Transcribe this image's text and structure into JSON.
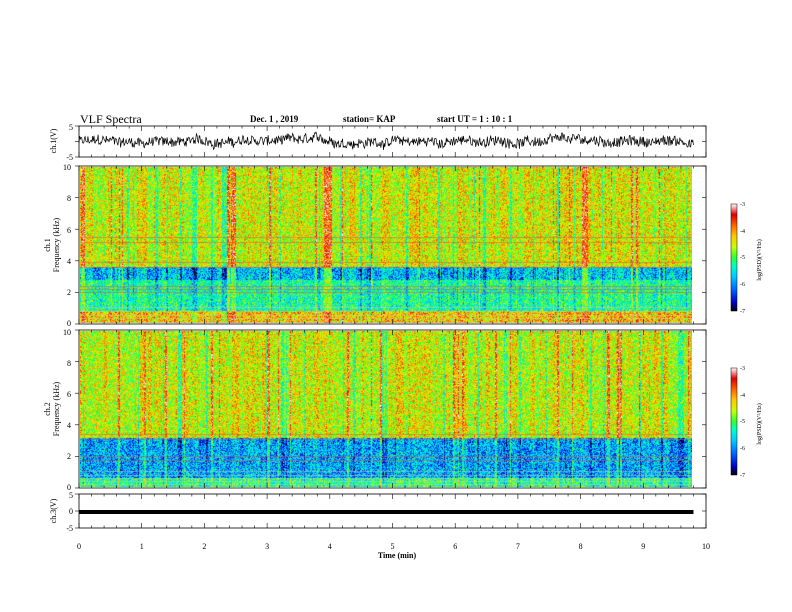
{
  "header": {
    "title": "VLF Spectra",
    "date": "Dec. 1  , 2019",
    "station": "station= KAP",
    "start": "start  UT =   1 : 10 : 1"
  },
  "colors": {
    "colormap": [
      "#000000",
      "#0000c8",
      "#0064ff",
      "#00c8ff",
      "#00ffc8",
      "#32ff32",
      "#c8ff00",
      "#ffc800",
      "#ff6400",
      "#dc0000",
      "#ffffff"
    ],
    "waveform": "#000000",
    "background": "#ffffff"
  },
  "chart_data": [
    {
      "type": "line",
      "name": "ch1-waveform",
      "ylabel": "ch.1(V)",
      "ylim": [
        -5,
        5
      ],
      "yticks": [
        "5",
        "-5"
      ],
      "xlim": [
        0,
        10
      ],
      "data_extent_min": 9.8,
      "y_approx_range": [
        -3.5,
        3.5
      ],
      "y_mean": 0
    },
    {
      "type": "heatmap",
      "name": "ch1-spectrogram",
      "ylabel": "ch.1\nFrequency (kHz)",
      "ylim": [
        0,
        10
      ],
      "yticks": [
        "0",
        "2",
        "4",
        "6",
        "8",
        "10"
      ],
      "xlim": [
        0,
        10
      ],
      "data_extent_min": 9.8,
      "colorbar": {
        "label": "log(PSD)(V²/Hz)",
        "range": [
          -7,
          -3
        ],
        "ticks": [
          "-3",
          "-4",
          "-5",
          "-6",
          "-7"
        ]
      },
      "horizontal_lines_khz": [
        0.05,
        0.3,
        0.5,
        0.8,
        1.0,
        2.0,
        2.2,
        2.4,
        3.6,
        3.9,
        5.2,
        5.5
      ],
      "approx_log_psd_by_band": [
        {
          "from_khz": 0,
          "to_khz": 0.8,
          "value": -4.2
        },
        {
          "from_khz": 0.8,
          "to_khz": 2.8,
          "value": -5.3
        },
        {
          "from_khz": 2.8,
          "to_khz": 3.6,
          "value": -5.8
        },
        {
          "from_khz": 3.6,
          "to_khz": 10,
          "value": -4.5
        }
      ]
    },
    {
      "type": "heatmap",
      "name": "ch2-spectrogram",
      "ylabel": "ch.2\nFrequency (kHz)",
      "ylim": [
        0,
        10
      ],
      "yticks": [
        "0",
        "2",
        "4",
        "6",
        "8",
        "10"
      ],
      "xlim": [
        0,
        10
      ],
      "data_extent_min": 9.8,
      "colorbar": {
        "label": "log(PSD)(V²/Hz)",
        "range": [
          -7,
          -3
        ],
        "ticks": [
          "-3",
          "-4",
          "-5",
          "-6",
          "-7"
        ]
      },
      "horizontal_lines_khz": [
        0.2,
        0.4,
        0.6,
        0.8,
        1.0,
        1.7,
        2.0,
        3.1,
        3.4
      ],
      "approx_log_psd_by_band": [
        {
          "from_khz": 0,
          "to_khz": 0.6,
          "value": -5.2
        },
        {
          "from_khz": 0.6,
          "to_khz": 3.2,
          "value": -5.9
        },
        {
          "from_khz": 3.2,
          "to_khz": 10,
          "value": -4.5
        }
      ]
    },
    {
      "type": "line",
      "name": "ch3-waveform",
      "ylabel": "ch.3(V)",
      "ylim": [
        -5,
        5
      ],
      "yticks": [
        "5",
        "0",
        "-5"
      ],
      "xlim": [
        0,
        10
      ],
      "data_extent_min": 9.8,
      "y_value": 0
    }
  ],
  "xaxis": {
    "label": "Time  (min)",
    "ticks": [
      "0",
      "1",
      "2",
      "3",
      "4",
      "5",
      "6",
      "7",
      "8",
      "9",
      "10"
    ],
    "range": [
      0,
      10
    ]
  }
}
